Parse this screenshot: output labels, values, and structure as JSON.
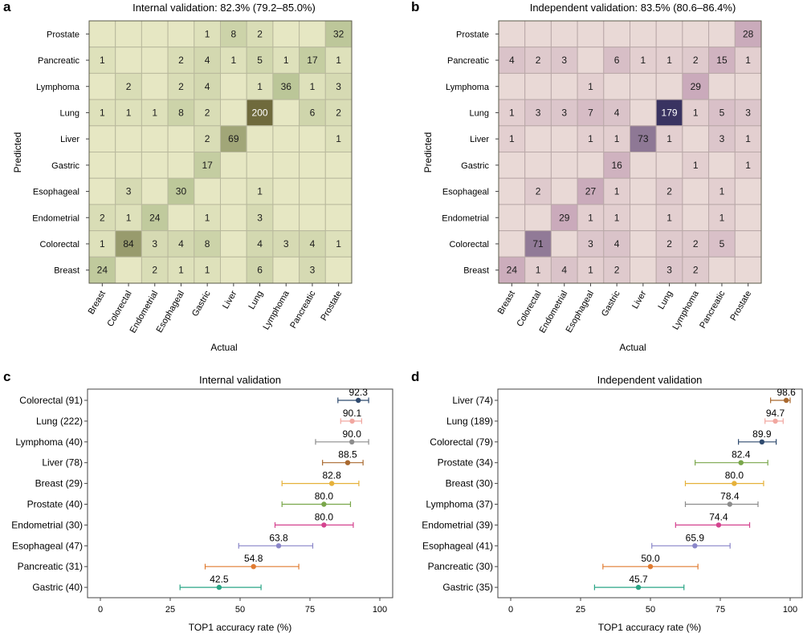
{
  "panel_letters": {
    "a": "a",
    "b": "b",
    "c": "c",
    "d": "d"
  },
  "chart_data": [
    {
      "panel": "a",
      "type": "heatmap",
      "title": "Internal validation: 82.3% (79.2–85.0%)",
      "xlabel": "Actual",
      "ylabel": "Predicted",
      "x_categories": [
        "Breast",
        "Colorectal",
        "Endometrial",
        "Esophageal",
        "Gastric",
        "Liver",
        "Lung",
        "Lymphoma",
        "Pancreatic",
        "Prostate"
      ],
      "y_categories": [
        "Prostate",
        "Pancreatic",
        "Lymphoma",
        "Lung",
        "Liver",
        "Gastric",
        "Esophageal",
        "Endometrial",
        "Colorectal",
        "Breast"
      ],
      "matrix": [
        [
          null,
          null,
          null,
          null,
          1,
          8,
          2,
          null,
          null,
          32
        ],
        [
          1,
          null,
          null,
          2,
          4,
          1,
          5,
          1,
          17,
          1
        ],
        [
          null,
          2,
          null,
          2,
          4,
          null,
          1,
          36,
          1,
          3
        ],
        [
          1,
          1,
          1,
          8,
          2,
          null,
          200,
          null,
          6,
          2
        ],
        [
          null,
          null,
          null,
          null,
          2,
          69,
          null,
          null,
          null,
          1
        ],
        [
          null,
          null,
          null,
          null,
          17,
          null,
          null,
          null,
          null,
          null
        ],
        [
          null,
          3,
          null,
          30,
          null,
          null,
          1,
          null,
          null,
          null
        ],
        [
          2,
          1,
          24,
          null,
          1,
          null,
          3,
          null,
          null,
          null
        ],
        [
          1,
          84,
          3,
          4,
          8,
          null,
          4,
          3,
          4,
          1
        ],
        [
          24,
          null,
          2,
          1,
          1,
          null,
          6,
          null,
          3,
          null
        ]
      ],
      "colors": {
        "base": "#e6e7c3",
        "mid": "#bac597",
        "dark": "#6f6a3c",
        "grid": "#b9b99d",
        "light_text": "#ffffff"
      }
    },
    {
      "panel": "b",
      "type": "heatmap",
      "title": "Independent validation: 83.5% (80.6–86.4%)",
      "xlabel": "Actual",
      "ylabel": "Predicted",
      "x_categories": [
        "Breast",
        "Colorectal",
        "Endometrial",
        "Esophageal",
        "Gastric",
        "Liver",
        "Lung",
        "Lymphoma",
        "Pancreatic",
        "Prostate"
      ],
      "y_categories": [
        "Prostate",
        "Pancreatic",
        "Lymphoma",
        "Lung",
        "Liver",
        "Gastric",
        "Esophageal",
        "Endometrial",
        "Colorectal",
        "Breast"
      ],
      "matrix": [
        [
          null,
          null,
          null,
          null,
          null,
          null,
          null,
          null,
          null,
          28
        ],
        [
          4,
          2,
          3,
          null,
          6,
          1,
          1,
          2,
          15,
          1
        ],
        [
          null,
          null,
          null,
          1,
          null,
          null,
          null,
          29,
          null,
          null
        ],
        [
          1,
          3,
          3,
          7,
          4,
          null,
          179,
          1,
          5,
          3
        ],
        [
          1,
          null,
          null,
          1,
          1,
          73,
          1,
          null,
          3,
          1
        ],
        [
          null,
          null,
          null,
          null,
          16,
          null,
          null,
          1,
          null,
          1
        ],
        [
          null,
          2,
          null,
          27,
          1,
          null,
          2,
          null,
          1,
          null
        ],
        [
          null,
          null,
          29,
          1,
          1,
          null,
          1,
          null,
          1,
          null
        ],
        [
          null,
          71,
          null,
          3,
          4,
          null,
          2,
          2,
          5,
          null
        ],
        [
          24,
          1,
          4,
          1,
          2,
          null,
          3,
          2,
          null,
          null
        ]
      ],
      "colors": {
        "base": "#e9d9d6",
        "mid": "#c7a6b8",
        "dark": "#2e2a5a",
        "grid": "#b9a8a8",
        "light_text": "#ffffff"
      }
    },
    {
      "panel": "c",
      "type": "scatter",
      "subtype": "forest",
      "title": "Internal validation",
      "xlabel": "TOP1 accuracy rate (%)",
      "xlim": [
        0,
        100
      ],
      "xticks": [
        0,
        25,
        50,
        75,
        100
      ],
      "items": [
        {
          "label": "Colorectal (91)",
          "value": 92.3,
          "value_text": "92.3",
          "ci": [
            85,
            96
          ],
          "color": "#2f4a6e"
        },
        {
          "label": "Lung (222)",
          "value": 90.1,
          "value_text": "90.1",
          "ci": [
            86,
            93.5
          ],
          "color": "#f1a7a0"
        },
        {
          "label": "Lymphoma (40)",
          "value": 90.0,
          "value_text": "90.0",
          "ci": [
            77,
            96
          ],
          "color": "#8c8c8c"
        },
        {
          "label": "Liver (78)",
          "value": 88.5,
          "value_text": "88.5",
          "ci": [
            79.5,
            94
          ],
          "color": "#a9692f"
        },
        {
          "label": "Breast (29)",
          "value": 82.8,
          "value_text": "82.8",
          "ci": [
            65,
            92.5
          ],
          "color": "#e6b13a"
        },
        {
          "label": "Prostate (40)",
          "value": 80.0,
          "value_text": "80.0",
          "ci": [
            65,
            89.5
          ],
          "color": "#79a64a"
        },
        {
          "label": "Endometrial (30)",
          "value": 80.0,
          "value_text": "80.0",
          "ci": [
            62.5,
            90.5
          ],
          "color": "#d4438f"
        },
        {
          "label": "Esophageal (47)",
          "value": 63.8,
          "value_text": "63.8",
          "ci": [
            49.5,
            76
          ],
          "color": "#8a86c9"
        },
        {
          "label": "Pancreatic (31)",
          "value": 54.8,
          "value_text": "54.8",
          "ci": [
            37.5,
            71
          ],
          "color": "#e07b31"
        },
        {
          "label": "Gastric (40)",
          "value": 42.5,
          "value_text": "42.5",
          "ci": [
            28.5,
            57.5
          ],
          "color": "#2aa585"
        }
      ]
    },
    {
      "panel": "d",
      "type": "scatter",
      "subtype": "forest",
      "title": "Independent validation",
      "xlabel": "TOP1 accuracy rate (%)",
      "xlim": [
        0,
        100
      ],
      "xticks": [
        0,
        25,
        50,
        75,
        100
      ],
      "items": [
        {
          "label": "Liver (74)",
          "value": 98.6,
          "value_text": "98.6",
          "ci": [
            93,
            100
          ],
          "color": "#a9692f"
        },
        {
          "label": "Lung (189)",
          "value": 94.7,
          "value_text": "94.7",
          "ci": [
            91,
            97.5
          ],
          "color": "#f1a7a0"
        },
        {
          "label": "Colorectal (79)",
          "value": 89.9,
          "value_text": "89.9",
          "ci": [
            81.5,
            95
          ],
          "color": "#2f4a6e"
        },
        {
          "label": "Prostate (34)",
          "value": 82.4,
          "value_text": "82.4",
          "ci": [
            66,
            92
          ],
          "color": "#79a64a"
        },
        {
          "label": "Breast (30)",
          "value": 80.0,
          "value_text": "80.0",
          "ci": [
            62.5,
            90.5
          ],
          "color": "#e6b13a"
        },
        {
          "label": "Lymphoma (37)",
          "value": 78.4,
          "value_text": "78.4",
          "ci": [
            62.5,
            88.5
          ],
          "color": "#8c8c8c"
        },
        {
          "label": "Endometrial (39)",
          "value": 74.4,
          "value_text": "74.4",
          "ci": [
            59,
            85.5
          ],
          "color": "#d4438f"
        },
        {
          "label": "Esophageal (41)",
          "value": 65.9,
          "value_text": "65.9",
          "ci": [
            50.5,
            78.5
          ],
          "color": "#8a86c9"
        },
        {
          "label": "Pancreatic (30)",
          "value": 50.0,
          "value_text": "50.0",
          "ci": [
            33,
            67
          ],
          "color": "#e07b31"
        },
        {
          "label": "Gastric (35)",
          "value": 45.7,
          "value_text": "45.7",
          "ci": [
            30,
            62
          ],
          "color": "#2aa585"
        }
      ]
    }
  ]
}
